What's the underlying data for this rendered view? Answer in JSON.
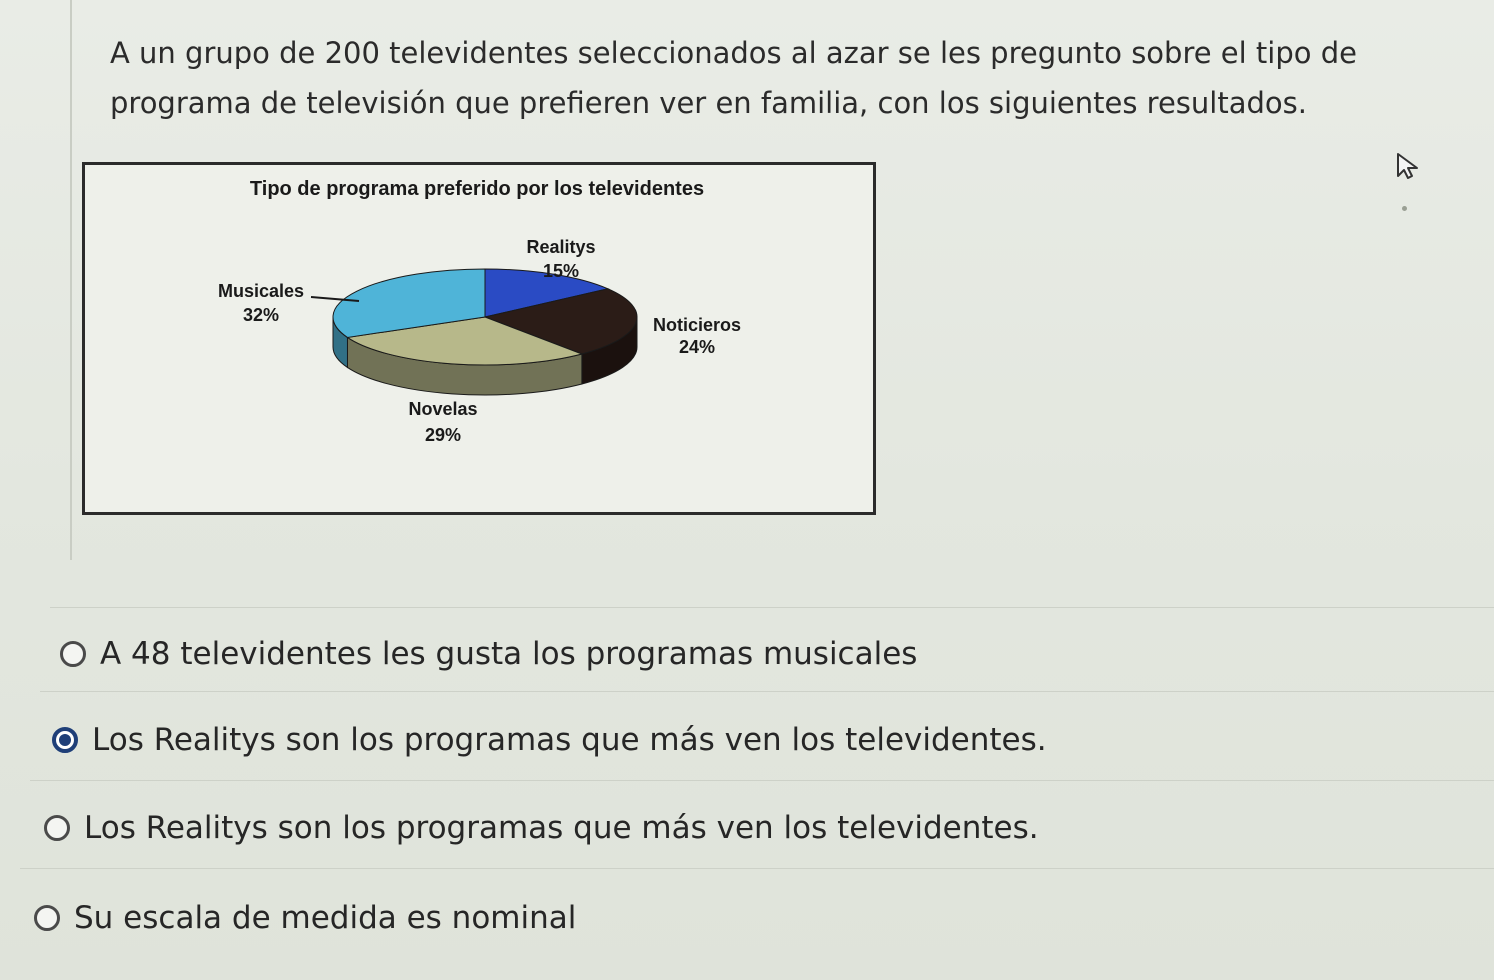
{
  "question": {
    "line1": "A un grupo de 200 televidentes seleccionados al azar se les pregunto sobre el tipo de",
    "line2": "programa de televisión que prefieren ver en familia, con los siguientes resultados."
  },
  "chart_data": {
    "type": "pie",
    "title": "Tipo de programa preferido por los televidentes",
    "slices": [
      {
        "label": "Realitys",
        "value": 15,
        "value_label": "15%",
        "color": "#2a4bc4"
      },
      {
        "label": "Noticieros",
        "value": 24,
        "value_label": "24%",
        "color": "#2b1c17"
      },
      {
        "label": "Novelas",
        "value": 29,
        "value_label": "29%",
        "color": "#b7b88a"
      },
      {
        "label": "Musicales",
        "value": 32,
        "value_label": "32%",
        "color": "#4fb4d8"
      }
    ],
    "style": "3d-exploded"
  },
  "options": [
    {
      "label": "A 48 televidentes les gusta los programas musicales",
      "selected": false
    },
    {
      "label": "Los Realitys son los programas que más ven los televidentes.",
      "selected": true
    },
    {
      "label": "Los Realitys son los programas que más ven los televidentes.",
      "selected": false
    },
    {
      "label": "Su escala de medida es nominal",
      "selected": false
    }
  ]
}
